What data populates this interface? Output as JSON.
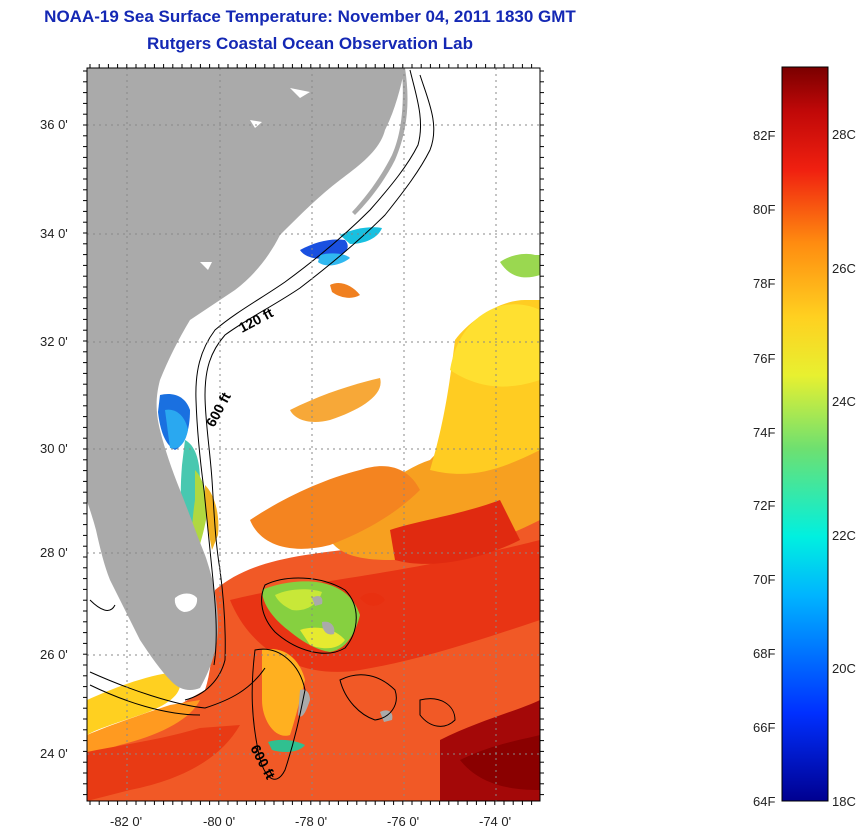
{
  "title": {
    "line1": "NOAA-19 Sea Surface Temperature:  November 04, 2011 1830 GMT",
    "line2": "Rutgers Coastal Ocean Observation Lab"
  },
  "map": {
    "lat_ticks": [
      "36 0'",
      "34 0'",
      "32 0'",
      "30 0'",
      "28 0'",
      "26 0'",
      "24 0'"
    ],
    "lon_ticks": [
      "-82 0'",
      "-80 0'",
      "-78 0'",
      "-76 0'",
      "-74 0'"
    ],
    "contour_labels": [
      "120 ft",
      "600 ft",
      "600 ft"
    ],
    "colors": {
      "land": "#aaaaaa",
      "ocean_cloud": "#ffffff"
    }
  },
  "colorbar": {
    "f_ticks": [
      "82F",
      "80F",
      "78F",
      "76F",
      "74F",
      "72F",
      "70F",
      "68F",
      "66F",
      "64F"
    ],
    "c_ticks": [
      "28C",
      "26C",
      "24C",
      "22C",
      "20C",
      "18C"
    ]
  }
}
